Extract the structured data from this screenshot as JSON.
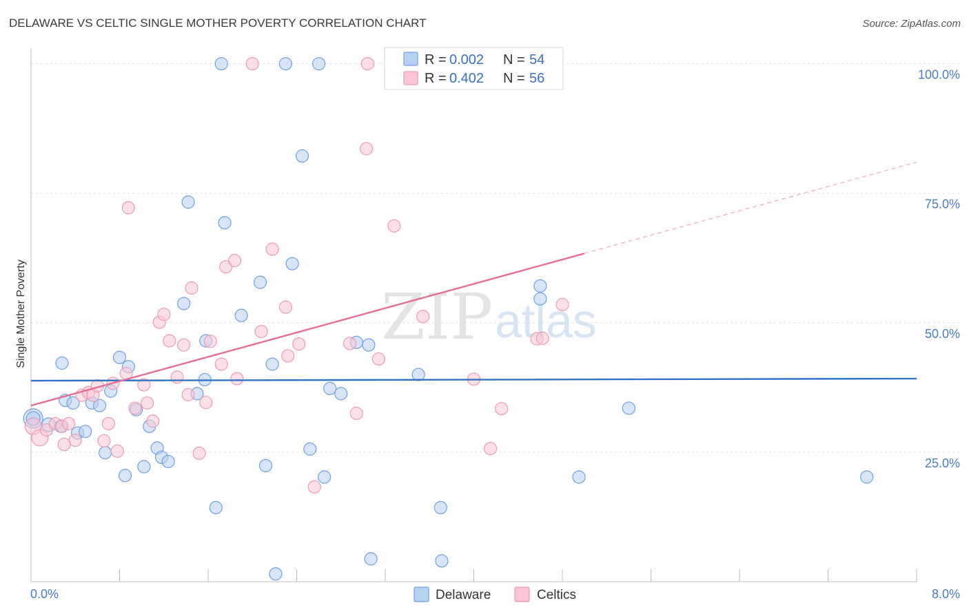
{
  "chart_data": {
    "type": "scatter",
    "title": "DELAWARE VS CELTIC SINGLE MOTHER POVERTY CORRELATION CHART",
    "source": "Source: ZipAtlas.com",
    "ylabel": "Single Mother Poverty",
    "xlim": [
      0,
      8
    ],
    "ylim": [
      0,
      105
    ],
    "x_tick_labels": [
      "0.0%",
      "8.0%"
    ],
    "y_ticks": [
      {
        "value": 25,
        "label": "25.0%"
      },
      {
        "value": 50,
        "label": "50.0%"
      },
      {
        "value": 75,
        "label": "75.0%"
      },
      {
        "value": 100,
        "label": "100.0%"
      }
    ],
    "legend": {
      "delaware": {
        "r_label": "R =",
        "r_value": "0.002",
        "n_label": "N =",
        "n_value": "54"
      },
      "celtics": {
        "r_label": "R =",
        "r_value": "0.402",
        "n_label": "N =",
        "n_value": "56"
      }
    },
    "watermark": {
      "zip": "ZIP",
      "atlas": "atlas"
    },
    "series": [
      {
        "name": "Delaware",
        "color": "#6fa0e0",
        "fill": "#b8d0f2",
        "trend": {
          "x0": 0,
          "y0": 38.8,
          "x1": 8,
          "y1": 39.2,
          "solid_until": 8,
          "color": "#2f72c9"
        },
        "points": [
          [
            0.02,
            31.5,
            14
          ],
          [
            0.16,
            30.3,
            10
          ],
          [
            0.27,
            30.0,
            9
          ],
          [
            0.28,
            42.2,
            9
          ],
          [
            0.31,
            35.0,
            9
          ],
          [
            0.38,
            34.5,
            9
          ],
          [
            0.42,
            28.7,
            9
          ],
          [
            0.49,
            29.0,
            9
          ],
          [
            0.55,
            34.5,
            9
          ],
          [
            0.62,
            34.0,
            9
          ],
          [
            0.67,
            24.9,
            9
          ],
          [
            0.72,
            36.8,
            9
          ],
          [
            0.8,
            43.3,
            9
          ],
          [
            0.85,
            20.5,
            9
          ],
          [
            0.88,
            41.5,
            9
          ],
          [
            0.95,
            33.2,
            9
          ],
          [
            1.02,
            22.2,
            9
          ],
          [
            1.07,
            30.0,
            9
          ],
          [
            1.14,
            25.8,
            9
          ],
          [
            1.18,
            24.0,
            9
          ],
          [
            1.24,
            23.2,
            9
          ],
          [
            1.38,
            53.7,
            9
          ],
          [
            1.42,
            73.3,
            9
          ],
          [
            1.5,
            36.3,
            9
          ],
          [
            1.57,
            39.0,
            9
          ],
          [
            1.58,
            46.5,
            9
          ],
          [
            1.67,
            14.3,
            9
          ],
          [
            1.72,
            100.0,
            9
          ],
          [
            1.75,
            69.3,
            9
          ],
          [
            1.9,
            51.4,
            9
          ],
          [
            2.07,
            57.8,
            9
          ],
          [
            2.12,
            22.4,
            9
          ],
          [
            2.18,
            42.0,
            9
          ],
          [
            2.21,
            1.5,
            9
          ],
          [
            2.3,
            100.0,
            9
          ],
          [
            2.36,
            61.4,
            9
          ],
          [
            2.45,
            82.2,
            9
          ],
          [
            2.52,
            25.6,
            9
          ],
          [
            2.6,
            100.0,
            9
          ],
          [
            2.65,
            20.2,
            9
          ],
          [
            2.7,
            37.3,
            9
          ],
          [
            2.8,
            36.3,
            9
          ],
          [
            2.94,
            46.2,
            9
          ],
          [
            3.05,
            45.7,
            9
          ],
          [
            3.07,
            4.4,
            9
          ],
          [
            3.5,
            40.0,
            9
          ],
          [
            3.7,
            14.3,
            9
          ],
          [
            3.71,
            4.0,
            9
          ],
          [
            4.6,
            57.1,
            9
          ],
          [
            4.6,
            54.6,
            9
          ],
          [
            4.95,
            20.2,
            9
          ],
          [
            5.4,
            33.5,
            9
          ],
          [
            7.55,
            20.2,
            9
          ],
          [
            0.02,
            31.5,
            10
          ]
        ]
      },
      {
        "name": "Celtics",
        "color": "#ee9ab7",
        "fill": "#f8c6d6",
        "trend": {
          "x0": 0,
          "y0": 34.0,
          "x1": 8,
          "y1": 81.0,
          "solid_until": 5.0,
          "color": "#e56e98"
        },
        "points": [
          [
            0.02,
            30.0,
            12
          ],
          [
            0.08,
            27.8,
            12
          ],
          [
            0.14,
            29.3,
            9
          ],
          [
            0.22,
            30.5,
            9
          ],
          [
            0.28,
            30.0,
            9
          ],
          [
            0.3,
            26.5,
            9
          ],
          [
            0.34,
            30.5,
            9
          ],
          [
            0.4,
            27.3,
            9
          ],
          [
            0.46,
            36.0,
            9
          ],
          [
            0.52,
            36.5,
            9
          ],
          [
            0.56,
            36.0,
            9
          ],
          [
            0.6,
            37.8,
            9
          ],
          [
            0.66,
            27.2,
            9
          ],
          [
            0.7,
            30.5,
            9
          ],
          [
            0.74,
            38.3,
            9
          ],
          [
            0.78,
            25.2,
            9
          ],
          [
            0.86,
            40.2,
            9
          ],
          [
            0.88,
            72.2,
            9
          ],
          [
            0.94,
            33.5,
            9
          ],
          [
            1.02,
            38.0,
            9
          ],
          [
            1.05,
            34.5,
            9
          ],
          [
            1.1,
            31.0,
            9
          ],
          [
            1.16,
            50.1,
            9
          ],
          [
            1.2,
            51.6,
            9
          ],
          [
            1.25,
            46.5,
            9
          ],
          [
            1.32,
            39.5,
            9
          ],
          [
            1.38,
            45.7,
            9
          ],
          [
            1.42,
            36.1,
            9
          ],
          [
            1.45,
            56.7,
            9
          ],
          [
            1.52,
            24.8,
            9
          ],
          [
            1.58,
            34.6,
            9
          ],
          [
            1.62,
            46.4,
            9
          ],
          [
            1.72,
            42.0,
            9
          ],
          [
            1.76,
            60.8,
            9
          ],
          [
            1.84,
            62.0,
            9
          ],
          [
            1.86,
            39.2,
            9
          ],
          [
            2.0,
            100.0,
            9
          ],
          [
            2.08,
            48.3,
            9
          ],
          [
            2.18,
            64.2,
            9
          ],
          [
            2.3,
            53.0,
            9
          ],
          [
            2.32,
            43.6,
            9
          ],
          [
            2.42,
            45.9,
            9
          ],
          [
            2.56,
            18.3,
            9
          ],
          [
            2.88,
            46.0,
            9
          ],
          [
            2.94,
            32.5,
            9
          ],
          [
            3.03,
            83.6,
            9
          ],
          [
            3.04,
            100.0,
            9
          ],
          [
            3.14,
            43.0,
            9
          ],
          [
            3.28,
            68.7,
            9
          ],
          [
            3.54,
            51.2,
            9
          ],
          [
            4.0,
            39.1,
            9
          ],
          [
            4.15,
            25.7,
            9
          ],
          [
            4.25,
            33.4,
            9
          ],
          [
            4.57,
            46.9,
            9
          ],
          [
            4.62,
            47.0,
            9
          ],
          [
            4.8,
            53.5,
            9
          ]
        ]
      }
    ]
  }
}
